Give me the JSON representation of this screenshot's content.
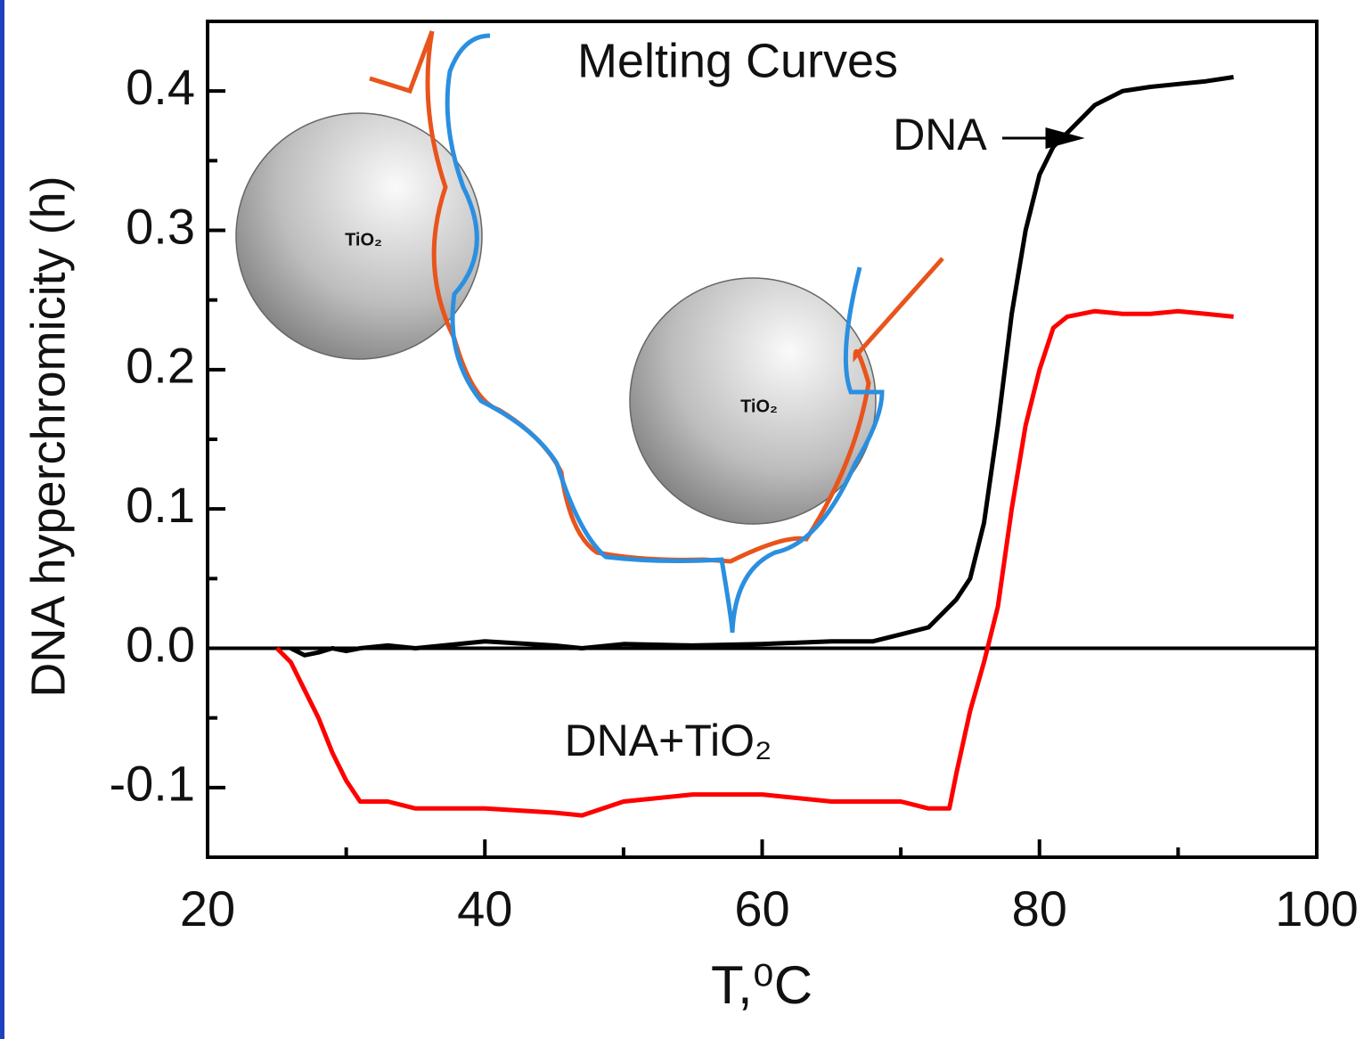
{
  "chart_data": {
    "type": "line",
    "title": "Melting Curves",
    "x_label": "T,⁰C",
    "y_label": "DNA hyperchromicity (h)",
    "annotations": [
      "DNA",
      "DNA+TiO₂"
    ],
    "illustration_labels": [
      "TiO₂",
      "TiO₂"
    ],
    "x": [
      25,
      26,
      27,
      28,
      29,
      30,
      31,
      33,
      35,
      40,
      45,
      47,
      50,
      55,
      60,
      65,
      68,
      70,
      72,
      73.5,
      74,
      75,
      76,
      77,
      78,
      79,
      80,
      81,
      82,
      84,
      86,
      88,
      90,
      92,
      94
    ],
    "series": [
      {
        "name": "DNA",
        "color": "#000000",
        "values": [
          null,
          0,
          -0.005,
          -0.003,
          0,
          -0.002,
          0,
          0.002,
          0,
          0.005,
          0.002,
          0,
          0.003,
          0.002,
          0.003,
          0.005,
          0.005,
          0.01,
          0.015,
          0.03,
          0.035,
          0.05,
          0.09,
          0.16,
          0.24,
          0.3,
          0.34,
          0.36,
          0.37,
          0.39,
          0.4,
          0.403,
          0.405,
          0.407,
          0.41
        ]
      },
      {
        "name": "DNA+TiO₂",
        "color": "#ff0000",
        "values": [
          0,
          -0.01,
          -0.03,
          -0.05,
          -0.075,
          -0.095,
          -0.11,
          -0.11,
          -0.115,
          -0.115,
          -0.118,
          -0.12,
          -0.11,
          -0.105,
          -0.105,
          -0.11,
          -0.11,
          -0.11,
          -0.115,
          -0.115,
          -0.09,
          -0.045,
          -0.01,
          0.03,
          0.1,
          0.16,
          0.2,
          0.23,
          0.238,
          0.242,
          0.24,
          0.24,
          0.242,
          0.24,
          0.238
        ]
      }
    ],
    "reference_line": 0,
    "xlim": [
      20,
      100
    ],
    "xticks": [
      20,
      40,
      60,
      80,
      100
    ],
    "xminorticks": [
      30,
      50,
      70,
      90
    ],
    "ylim": [
      -0.15,
      0.45
    ],
    "yticks": [
      -0.1,
      {
        "value": 0,
        "label": "0.0"
      },
      0.1,
      0.2,
      0.3,
      0.4
    ],
    "yminorticks": [
      -0.15,
      -0.05,
      0.05,
      0.15,
      0.25,
      0.35
    ]
  }
}
